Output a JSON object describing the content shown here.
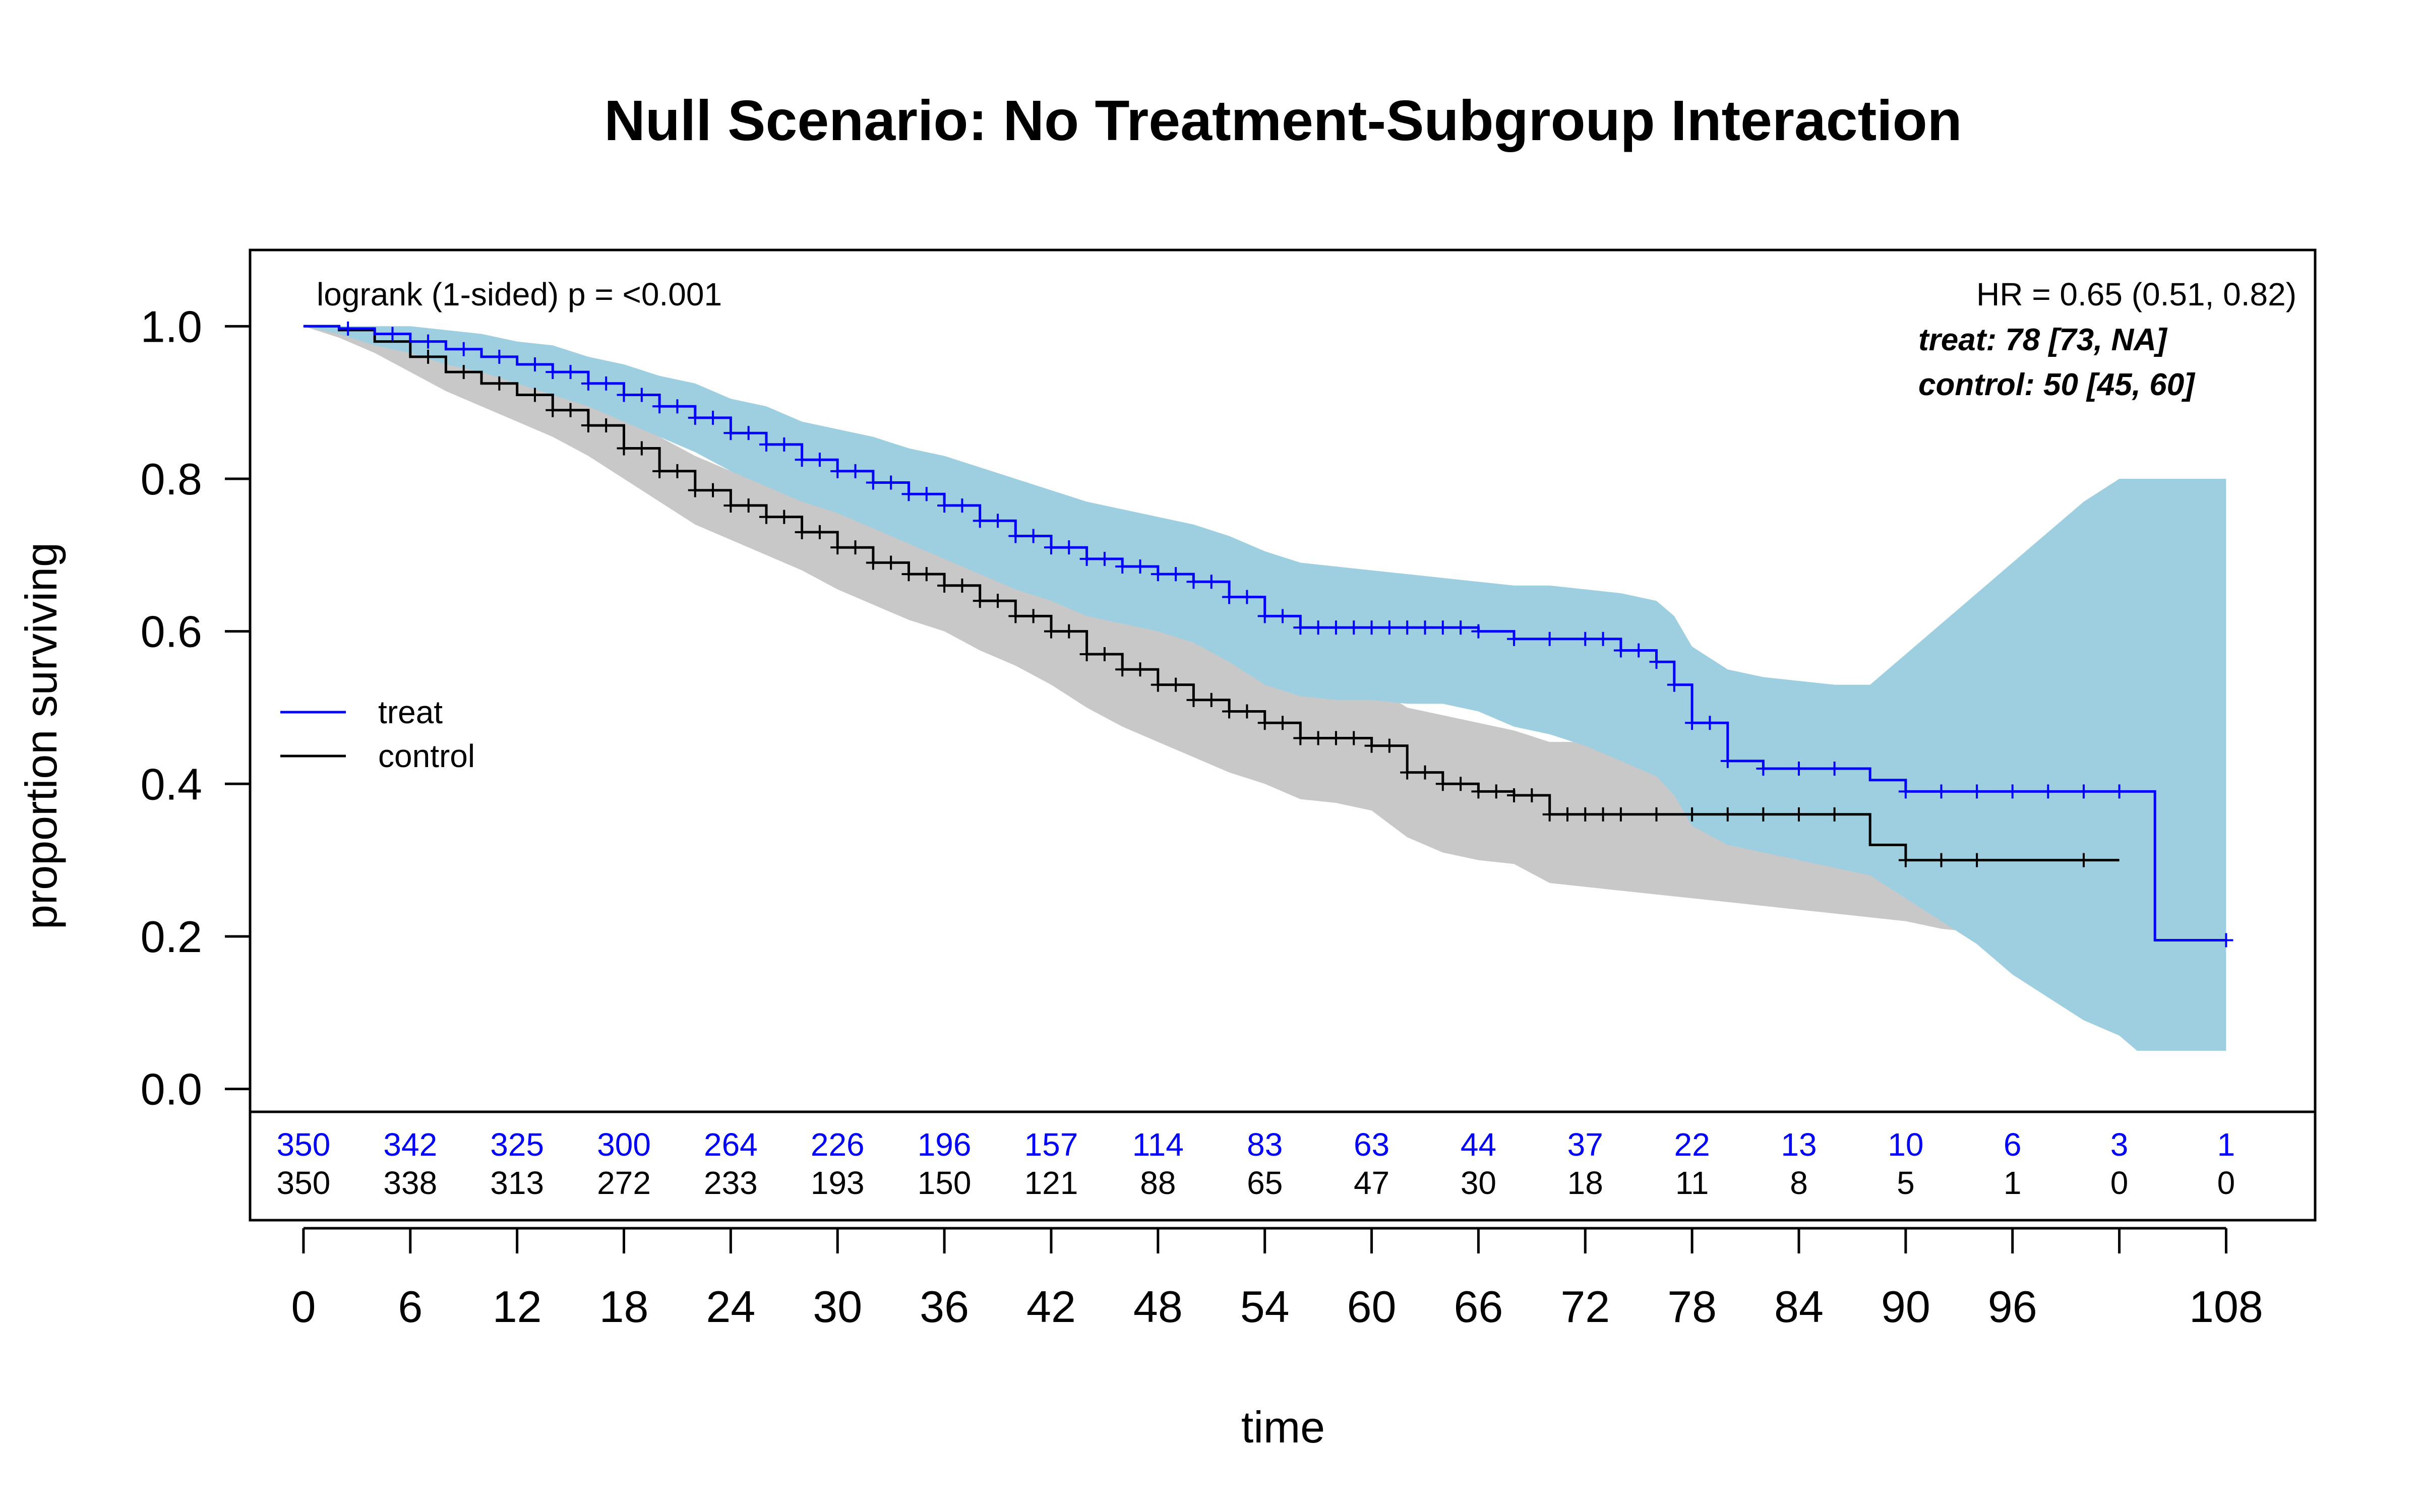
{
  "chart_data": {
    "type": "line",
    "title": "Null Scenario: No Treatment-Subgroup Interaction",
    "xlabel": "time",
    "ylabel": "proportion surviving",
    "xlim": [
      -3,
      113
    ],
    "ylim": [
      -0.03,
      1.1
    ],
    "x_ticks": [
      "0",
      "6",
      "12",
      "18",
      "24",
      "30",
      "36",
      "42",
      "48",
      "54",
      "60",
      "66",
      "72",
      "78",
      "84",
      "90",
      "96",
      "108"
    ],
    "x_tick_values": [
      0,
      6,
      12,
      18,
      24,
      30,
      36,
      42,
      48,
      54,
      60,
      66,
      72,
      78,
      84,
      90,
      96,
      108
    ],
    "y_ticks": [
      "0.0",
      "0.2",
      "0.4",
      "0.6",
      "0.8",
      "1.0"
    ],
    "y_tick_values": [
      0,
      0.2,
      0.4,
      0.6,
      0.8,
      1.0
    ],
    "grid": false,
    "legend_position": "left",
    "annotations": {
      "logrank": "logrank (1-sided) p = <0.001",
      "hr": "HR = 0.65 (0.51, 0.82)",
      "treat_median": "treat: 78 [73, NA]",
      "control_median": "control: 50 [45, 60]"
    },
    "colors": {
      "treat": "#0000ff",
      "control": "#000000",
      "treat_band": "#9ecfe1",
      "control_band": "#c8c8c8"
    },
    "series": [
      {
        "name": "treat",
        "x": [
          0,
          2,
          4,
          6,
          8,
          10,
          12,
          14,
          16,
          18,
          20,
          22,
          24,
          26,
          28,
          30,
          32,
          34,
          36,
          38,
          40,
          42,
          44,
          46,
          48,
          50,
          52,
          54,
          56,
          58,
          60,
          62,
          64,
          66,
          68,
          70,
          72,
          74,
          76,
          77,
          78,
          80,
          82,
          84,
          86,
          88,
          90,
          92,
          94,
          96,
          98,
          100,
          102,
          103,
          104,
          106,
          108
        ],
        "y": [
          1.0,
          0.997,
          0.99,
          0.98,
          0.97,
          0.96,
          0.95,
          0.94,
          0.925,
          0.91,
          0.895,
          0.88,
          0.86,
          0.845,
          0.825,
          0.81,
          0.795,
          0.78,
          0.765,
          0.745,
          0.725,
          0.71,
          0.695,
          0.685,
          0.675,
          0.665,
          0.645,
          0.62,
          0.605,
          0.605,
          0.605,
          0.605,
          0.605,
          0.6,
          0.59,
          0.59,
          0.59,
          0.575,
          0.56,
          0.53,
          0.48,
          0.43,
          0.42,
          0.42,
          0.42,
          0.405,
          0.39,
          0.39,
          0.39,
          0.39,
          0.39,
          0.39,
          0.39,
          0.39,
          0.195,
          0.195,
          0.195
        ],
        "lower": [
          1.0,
          0.99,
          0.975,
          0.965,
          0.95,
          0.94,
          0.925,
          0.91,
          0.895,
          0.875,
          0.855,
          0.835,
          0.81,
          0.79,
          0.77,
          0.755,
          0.735,
          0.715,
          0.695,
          0.675,
          0.655,
          0.64,
          0.62,
          0.61,
          0.6,
          0.585,
          0.56,
          0.53,
          0.515,
          0.51,
          0.51,
          0.505,
          0.505,
          0.495,
          0.475,
          0.465,
          0.45,
          0.43,
          0.41,
          0.385,
          0.345,
          0.32,
          0.31,
          0.3,
          0.29,
          0.28,
          0.25,
          0.22,
          0.19,
          0.15,
          0.12,
          0.09,
          0.07,
          0.05,
          0.05,
          0.05,
          0.05
        ],
        "upper": [
          1.0,
          1.0,
          1.0,
          1.0,
          0.995,
          0.99,
          0.98,
          0.975,
          0.96,
          0.95,
          0.935,
          0.925,
          0.905,
          0.895,
          0.875,
          0.865,
          0.855,
          0.84,
          0.83,
          0.815,
          0.8,
          0.785,
          0.77,
          0.76,
          0.75,
          0.74,
          0.725,
          0.705,
          0.69,
          0.685,
          0.68,
          0.675,
          0.67,
          0.665,
          0.66,
          0.66,
          0.655,
          0.65,
          0.64,
          0.62,
          0.58,
          0.55,
          0.54,
          0.535,
          0.53,
          0.53,
          0.57,
          0.61,
          0.65,
          0.69,
          0.73,
          0.77,
          0.8,
          0.8,
          0.8,
          0.8,
          0.8
        ]
      },
      {
        "name": "control",
        "x": [
          0,
          2,
          4,
          6,
          8,
          10,
          12,
          14,
          16,
          18,
          20,
          22,
          24,
          26,
          28,
          30,
          32,
          34,
          36,
          38,
          40,
          42,
          44,
          46,
          48,
          50,
          52,
          54,
          56,
          58,
          60,
          62,
          64,
          66,
          68,
          70,
          72,
          74,
          76,
          78,
          80,
          82,
          84,
          86,
          88,
          90,
          92,
          94,
          96,
          98,
          100,
          102
        ],
        "y": [
          1.0,
          0.995,
          0.98,
          0.96,
          0.94,
          0.925,
          0.91,
          0.89,
          0.87,
          0.84,
          0.81,
          0.785,
          0.765,
          0.75,
          0.73,
          0.71,
          0.69,
          0.675,
          0.66,
          0.64,
          0.62,
          0.6,
          0.57,
          0.55,
          0.53,
          0.51,
          0.495,
          0.48,
          0.46,
          0.46,
          0.45,
          0.415,
          0.4,
          0.39,
          0.385,
          0.36,
          0.36,
          0.36,
          0.36,
          0.36,
          0.36,
          0.36,
          0.36,
          0.36,
          0.32,
          0.3,
          0.3,
          0.3,
          0.3,
          0.3,
          0.3,
          0.3
        ],
        "lower": [
          1.0,
          0.985,
          0.965,
          0.94,
          0.915,
          0.895,
          0.875,
          0.855,
          0.83,
          0.8,
          0.77,
          0.74,
          0.72,
          0.7,
          0.68,
          0.655,
          0.635,
          0.615,
          0.6,
          0.575,
          0.555,
          0.53,
          0.5,
          0.475,
          0.455,
          0.435,
          0.415,
          0.4,
          0.38,
          0.375,
          0.365,
          0.33,
          0.31,
          0.3,
          0.295,
          0.27,
          0.265,
          0.26,
          0.255,
          0.25,
          0.245,
          0.24,
          0.235,
          0.23,
          0.225,
          0.22,
          0.21,
          0.205,
          0.2,
          0.2,
          0.2,
          0.2
        ],
        "upper": [
          1.0,
          1.0,
          0.995,
          0.98,
          0.965,
          0.955,
          0.945,
          0.925,
          0.91,
          0.88,
          0.855,
          0.83,
          0.81,
          0.795,
          0.78,
          0.765,
          0.745,
          0.735,
          0.72,
          0.705,
          0.685,
          0.665,
          0.64,
          0.62,
          0.605,
          0.585,
          0.575,
          0.56,
          0.545,
          0.54,
          0.53,
          0.5,
          0.49,
          0.48,
          0.47,
          0.455,
          0.455,
          0.455,
          0.455,
          0.455,
          0.45,
          0.45,
          0.45,
          0.45,
          0.43,
          0.41,
          0.41,
          0.41,
          0.41,
          0.41,
          0.41,
          0.41
        ]
      }
    ],
    "censor_marks": {
      "treat": [
        2.5,
        5,
        7,
        9,
        11,
        13,
        14,
        15,
        16,
        17,
        18,
        19,
        20,
        21,
        22,
        23,
        24,
        25,
        26,
        27,
        28,
        29,
        30,
        31,
        32,
        33,
        34,
        35,
        36,
        37,
        38,
        39,
        40,
        41,
        42,
        43,
        44,
        45,
        46,
        47,
        48,
        49,
        50,
        51,
        52,
        53,
        54,
        55,
        56,
        57,
        58,
        59,
        60,
        61,
        62,
        63,
        64,
        65,
        66,
        68,
        70,
        72,
        73,
        74,
        75,
        76,
        77,
        78,
        79,
        80,
        82,
        84,
        86,
        90,
        92,
        94,
        96,
        98,
        100,
        102,
        108
      ],
      "control": [
        7,
        9,
        11,
        13,
        14,
        15,
        16,
        17,
        18,
        19,
        20,
        21,
        22,
        23,
        24,
        25,
        26,
        27,
        28,
        29,
        30,
        31,
        32,
        33,
        34,
        35,
        36,
        37,
        38,
        39,
        40,
        41,
        42,
        43,
        44,
        45,
        46,
        47,
        48,
        49,
        50,
        51,
        52,
        53,
        54,
        55,
        56,
        57,
        58,
        59,
        60,
        61,
        62,
        63,
        64,
        65,
        66,
        67,
        68,
        69,
        70,
        71,
        72,
        73,
        74,
        76,
        78,
        80,
        82,
        84,
        86,
        90,
        92,
        94,
        100
      ]
    },
    "risk_table": {
      "times": [
        0,
        6,
        12,
        18,
        24,
        30,
        36,
        42,
        48,
        54,
        60,
        66,
        72,
        78,
        84,
        90,
        96,
        102,
        108
      ],
      "treat": [
        "350",
        "342",
        "325",
        "300",
        "264",
        "226",
        "196",
        "157",
        "114",
        "83",
        "63",
        "44",
        "37",
        "22",
        "13",
        "10",
        "6",
        "3",
        "1"
      ],
      "control": [
        "350",
        "338",
        "313",
        "272",
        "233",
        "193",
        "150",
        "121",
        "88",
        "65",
        "47",
        "30",
        "18",
        "11",
        "8",
        "5",
        "1",
        "0",
        "0"
      ]
    },
    "legend": [
      "treat",
      "control"
    ]
  }
}
